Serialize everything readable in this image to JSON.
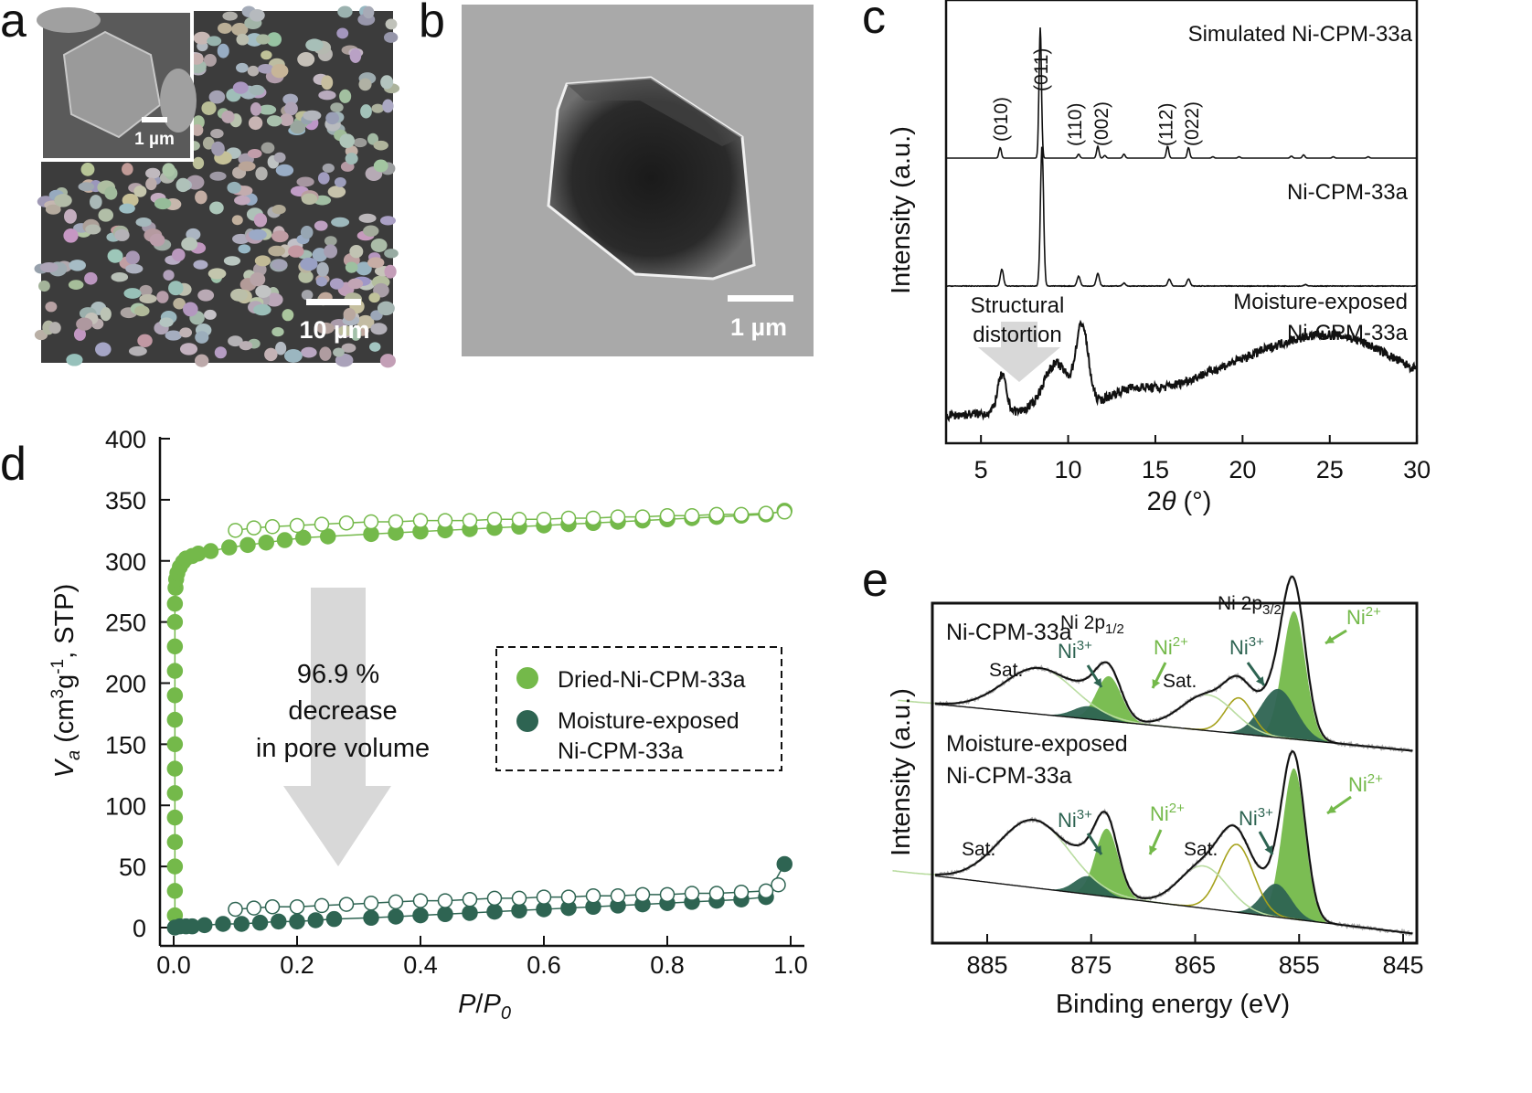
{
  "panels": {
    "a": "a",
    "b": "b",
    "c": "c",
    "d": "d",
    "e": "e"
  },
  "panel_a": {
    "scale_main": "10 µm",
    "scale_inset": "1 µm"
  },
  "panel_b": {
    "scale": "1 µm"
  },
  "colors": {
    "dried": "#74b94a",
    "moisture": "#2e6452",
    "gray_arrow": "#d8d8d8",
    "olive": "#a6a21c",
    "light_green": "#b9dca0"
  },
  "chart_data": [
    {
      "type": "line",
      "panel": "c",
      "xlabel_pre": "2",
      "xlabel_var": "θ",
      "xlabel_post": " (°)",
      "ylabel": "Intensity (a.u.)",
      "xlim": [
        3,
        30
      ],
      "xticks": [
        5,
        10,
        15,
        20,
        25,
        30
      ],
      "grid": false,
      "series": [
        {
          "name": "Simulated Ni-CPM-33a",
          "peaks": [
            [
              6.1,
              0.08
            ],
            [
              8.4,
              1.0
            ],
            [
              10.6,
              0.03
            ],
            [
              11.7,
              0.09
            ],
            [
              12.1,
              0.02
            ],
            [
              13.2,
              0.03
            ],
            [
              15.7,
              0.09
            ],
            [
              16.9,
              0.08
            ],
            [
              18.3,
              0.01
            ],
            [
              19.8,
              0.01
            ],
            [
              22.8,
              0.015
            ],
            [
              23.5,
              0.025
            ],
            [
              25.2,
              0.01
            ],
            [
              27.2,
              0.01
            ]
          ]
        },
        {
          "name": "Ni-CPM-33a",
          "peaks": [
            [
              6.2,
              0.12
            ],
            [
              8.5,
              1.0
            ],
            [
              10.6,
              0.07
            ],
            [
              11.7,
              0.09
            ],
            [
              13.2,
              0.02
            ],
            [
              15.8,
              0.05
            ],
            [
              16.9,
              0.05
            ],
            [
              23.6,
              0.01
            ]
          ]
        },
        {
          "name_line1": "Moisture-exposed",
          "name_line2": "Ni-CPM-33a",
          "peaks": [
            [
              6.2,
              0.45
            ],
            [
              9.3,
              0.55
            ],
            [
              10.8,
              0.95
            ],
            [
              13.5,
              0.15
            ],
            [
              18,
              0.22
            ],
            [
              22,
              0.35
            ],
            [
              26,
              0.55
            ]
          ]
        }
      ],
      "miller_labels": [
        [
          "(010)",
          6.1
        ],
        [
          "(011)",
          8.4
        ],
        [
          "(110)",
          10.6
        ],
        [
          "(002)",
          11.7
        ],
        [
          "(112)",
          15.7
        ],
        [
          "(022)",
          16.9
        ]
      ],
      "annotation_line1": "Structural",
      "annotation_line2": "distortion"
    },
    {
      "type": "scatter",
      "panel": "d",
      "xlim": [
        0,
        1
      ],
      "ylim": [
        0,
        400
      ],
      "xticks": [
        "0.0",
        "0.2",
        "0.4",
        "0.6",
        "0.8",
        "1.0"
      ],
      "yticks": [
        "0",
        "50",
        "100",
        "150",
        "200",
        "250",
        "300",
        "350",
        "400"
      ],
      "xlabel": {
        "var": "P",
        "slash": "/",
        "var2": "P",
        "sub": "0"
      },
      "ylabel": {
        "var": "V",
        "sub": "a",
        "pre": " (cm",
        "sup1": "3",
        "mid": "g",
        "sup2": "-1",
        "post": ", STP)"
      },
      "legend": {
        "position": "center-right",
        "items": [
          "Dried-Ni-CPM-33a",
          "Moisture-exposed",
          "Ni-CPM-33a"
        ]
      },
      "annotation": [
        "96.9 %",
        "decrease",
        "in pore volume"
      ],
      "series": [
        {
          "name": "Dried-Ni-CPM-33a",
          "branch": "adsorption",
          "filled": true,
          "points": [
            [
              0.002,
              10
            ],
            [
              0.002,
              30
            ],
            [
              0.002,
              50
            ],
            [
              0.002,
              70
            ],
            [
              0.002,
              90
            ],
            [
              0.002,
              110
            ],
            [
              0.002,
              130
            ],
            [
              0.002,
              150
            ],
            [
              0.002,
              170
            ],
            [
              0.002,
              190
            ],
            [
              0.002,
              210
            ],
            [
              0.002,
              230
            ],
            [
              0.002,
              250
            ],
            [
              0.002,
              265
            ],
            [
              0.003,
              278
            ],
            [
              0.004,
              285
            ],
            [
              0.006,
              290
            ],
            [
              0.01,
              295
            ],
            [
              0.015,
              299
            ],
            [
              0.02,
              302
            ],
            [
              0.03,
              304
            ],
            [
              0.04,
              306
            ],
            [
              0.06,
              308
            ],
            [
              0.09,
              311
            ],
            [
              0.12,
              313
            ],
            [
              0.15,
              315
            ],
            [
              0.18,
              317
            ],
            [
              0.21,
              319
            ],
            [
              0.25,
              320
            ],
            [
              0.32,
              322
            ],
            [
              0.36,
              323
            ],
            [
              0.4,
              324
            ],
            [
              0.44,
              325
            ],
            [
              0.48,
              326
            ],
            [
              0.52,
              327
            ],
            [
              0.56,
              328
            ],
            [
              0.6,
              329
            ],
            [
              0.64,
              330
            ],
            [
              0.68,
              331
            ],
            [
              0.72,
              332
            ],
            [
              0.76,
              333
            ],
            [
              0.8,
              334
            ],
            [
              0.84,
              335
            ],
            [
              0.88,
              336
            ],
            [
              0.92,
              337
            ],
            [
              0.96,
              338
            ],
            [
              0.99,
              341
            ]
          ]
        },
        {
          "name": "Dried-Ni-CPM-33a",
          "branch": "desorption",
          "filled": false,
          "points": [
            [
              0.99,
              340
            ],
            [
              0.96,
              339
            ],
            [
              0.92,
              338
            ],
            [
              0.88,
              338
            ],
            [
              0.84,
              337
            ],
            [
              0.8,
              337
            ],
            [
              0.76,
              336
            ],
            [
              0.72,
              336
            ],
            [
              0.68,
              335
            ],
            [
              0.64,
              335
            ],
            [
              0.6,
              334
            ],
            [
              0.56,
              334
            ],
            [
              0.52,
              334
            ],
            [
              0.48,
              333
            ],
            [
              0.44,
              333
            ],
            [
              0.4,
              333
            ],
            [
              0.36,
              332
            ],
            [
              0.32,
              332
            ],
            [
              0.28,
              331
            ],
            [
              0.24,
              330
            ],
            [
              0.2,
              329
            ],
            [
              0.16,
              328
            ],
            [
              0.13,
              327
            ],
            [
              0.1,
              325
            ]
          ]
        },
        {
          "name": "Moisture-exposed Ni-CPM-33a",
          "branch": "adsorption",
          "filled": true,
          "points": [
            [
              0.002,
              0
            ],
            [
              0.01,
              1
            ],
            [
              0.02,
              1
            ],
            [
              0.03,
              1
            ],
            [
              0.05,
              2
            ],
            [
              0.08,
              3
            ],
            [
              0.11,
              3
            ],
            [
              0.14,
              4
            ],
            [
              0.17,
              5
            ],
            [
              0.2,
              5
            ],
            [
              0.23,
              6
            ],
            [
              0.26,
              7
            ],
            [
              0.32,
              8
            ],
            [
              0.36,
              9
            ],
            [
              0.4,
              10
            ],
            [
              0.44,
              11
            ],
            [
              0.48,
              12
            ],
            [
              0.52,
              13
            ],
            [
              0.56,
              14
            ],
            [
              0.6,
              15
            ],
            [
              0.64,
              16
            ],
            [
              0.68,
              17
            ],
            [
              0.72,
              18
            ],
            [
              0.76,
              19
            ],
            [
              0.8,
              20
            ],
            [
              0.84,
              21
            ],
            [
              0.88,
              22
            ],
            [
              0.92,
              23
            ],
            [
              0.96,
              25
            ],
            [
              0.99,
              52
            ]
          ]
        },
        {
          "name": "Moisture-exposed Ni-CPM-33a",
          "branch": "desorption",
          "filled": false,
          "points": [
            [
              0.98,
              35
            ],
            [
              0.96,
              30
            ],
            [
              0.92,
              29
            ],
            [
              0.88,
              28
            ],
            [
              0.84,
              28
            ],
            [
              0.8,
              27
            ],
            [
              0.76,
              27
            ],
            [
              0.72,
              26
            ],
            [
              0.68,
              26
            ],
            [
              0.64,
              25
            ],
            [
              0.6,
              25
            ],
            [
              0.56,
              24
            ],
            [
              0.52,
              24
            ],
            [
              0.48,
              23
            ],
            [
              0.44,
              22
            ],
            [
              0.4,
              22
            ],
            [
              0.36,
              21
            ],
            [
              0.32,
              20
            ],
            [
              0.28,
              19
            ],
            [
              0.24,
              18
            ],
            [
              0.2,
              17
            ],
            [
              0.16,
              17
            ],
            [
              0.13,
              16
            ],
            [
              0.1,
              15
            ]
          ]
        }
      ]
    },
    {
      "type": "line",
      "panel": "e",
      "xlim": [
        890,
        845
      ],
      "xticks": [
        "885",
        "875",
        "865",
        "855",
        "845"
      ],
      "xlabel": "Binding energy (eV)",
      "ylabel": "Intensity (a.u.)",
      "grid": false,
      "spectra": [
        {
          "name": "Ni-CPM-33a",
          "components": [
            {
              "label": "Ni2+",
              "pos": 855.5,
              "h": 1.0,
              "w": 1.1,
              "color": "#74b94a"
            },
            {
              "label": "Ni3+",
              "pos": 857.0,
              "h": 0.38,
              "w": 1.7,
              "color": "#2e6452"
            },
            {
              "label": "Sat.",
              "pos": 860.8,
              "h": 0.28,
              "w": 1.3,
              "color": "olive"
            },
            {
              "label": "Sat.",
              "pos": 863.8,
              "h": 0.28,
              "w": 2.5,
              "color": "light"
            },
            {
              "label": "Ni2+",
              "pos": 873.3,
              "h": 0.35,
              "w": 1.2,
              "color": "#74b94a"
            },
            {
              "label": "Ni3+",
              "pos": 875.2,
              "h": 0.1,
              "w": 1.5,
              "color": "#2e6452"
            },
            {
              "label": "Sat.",
              "pos": 880,
              "h": 0.36,
              "w": 3.4,
              "color": "light"
            }
          ]
        },
        {
          "name_line1": "Moisture-exposed",
          "name_line2": "Ni-CPM-33a",
          "components": [
            {
              "label": "Ni2+",
              "pos": 855.5,
              "h": 1.0,
              "w": 1.1,
              "color": "#74b94a"
            },
            {
              "label": "Ni3+",
              "pos": 857.2,
              "h": 0.22,
              "w": 1.4,
              "color": "#2e6452"
            },
            {
              "label": "Sat.",
              "pos": 861,
              "h": 0.45,
              "w": 1.6,
              "color": "olive"
            },
            {
              "label": "Sat.",
              "pos": 864.2,
              "h": 0.28,
              "w": 2.3,
              "color": "light"
            },
            {
              "label": "Ni2+",
              "pos": 873.5,
              "h": 0.45,
              "w": 1.1,
              "color": "#74b94a"
            },
            {
              "label": "Ni3+",
              "pos": 875.3,
              "h": 0.12,
              "w": 1.3,
              "color": "#2e6452"
            },
            {
              "label": "Sat.",
              "pos": 880.5,
              "h": 0.45,
              "w": 3.4,
              "color": "light"
            }
          ]
        }
      ],
      "labels": {
        "p12_pre": "Ni 2p",
        "p12_sub": "1/2",
        "p32_pre": "Ni 2p",
        "p32_sub": "3/2",
        "ni": "Ni",
        "sup3": "3+",
        "sup2": "2+",
        "sat": "Sat."
      }
    }
  ]
}
